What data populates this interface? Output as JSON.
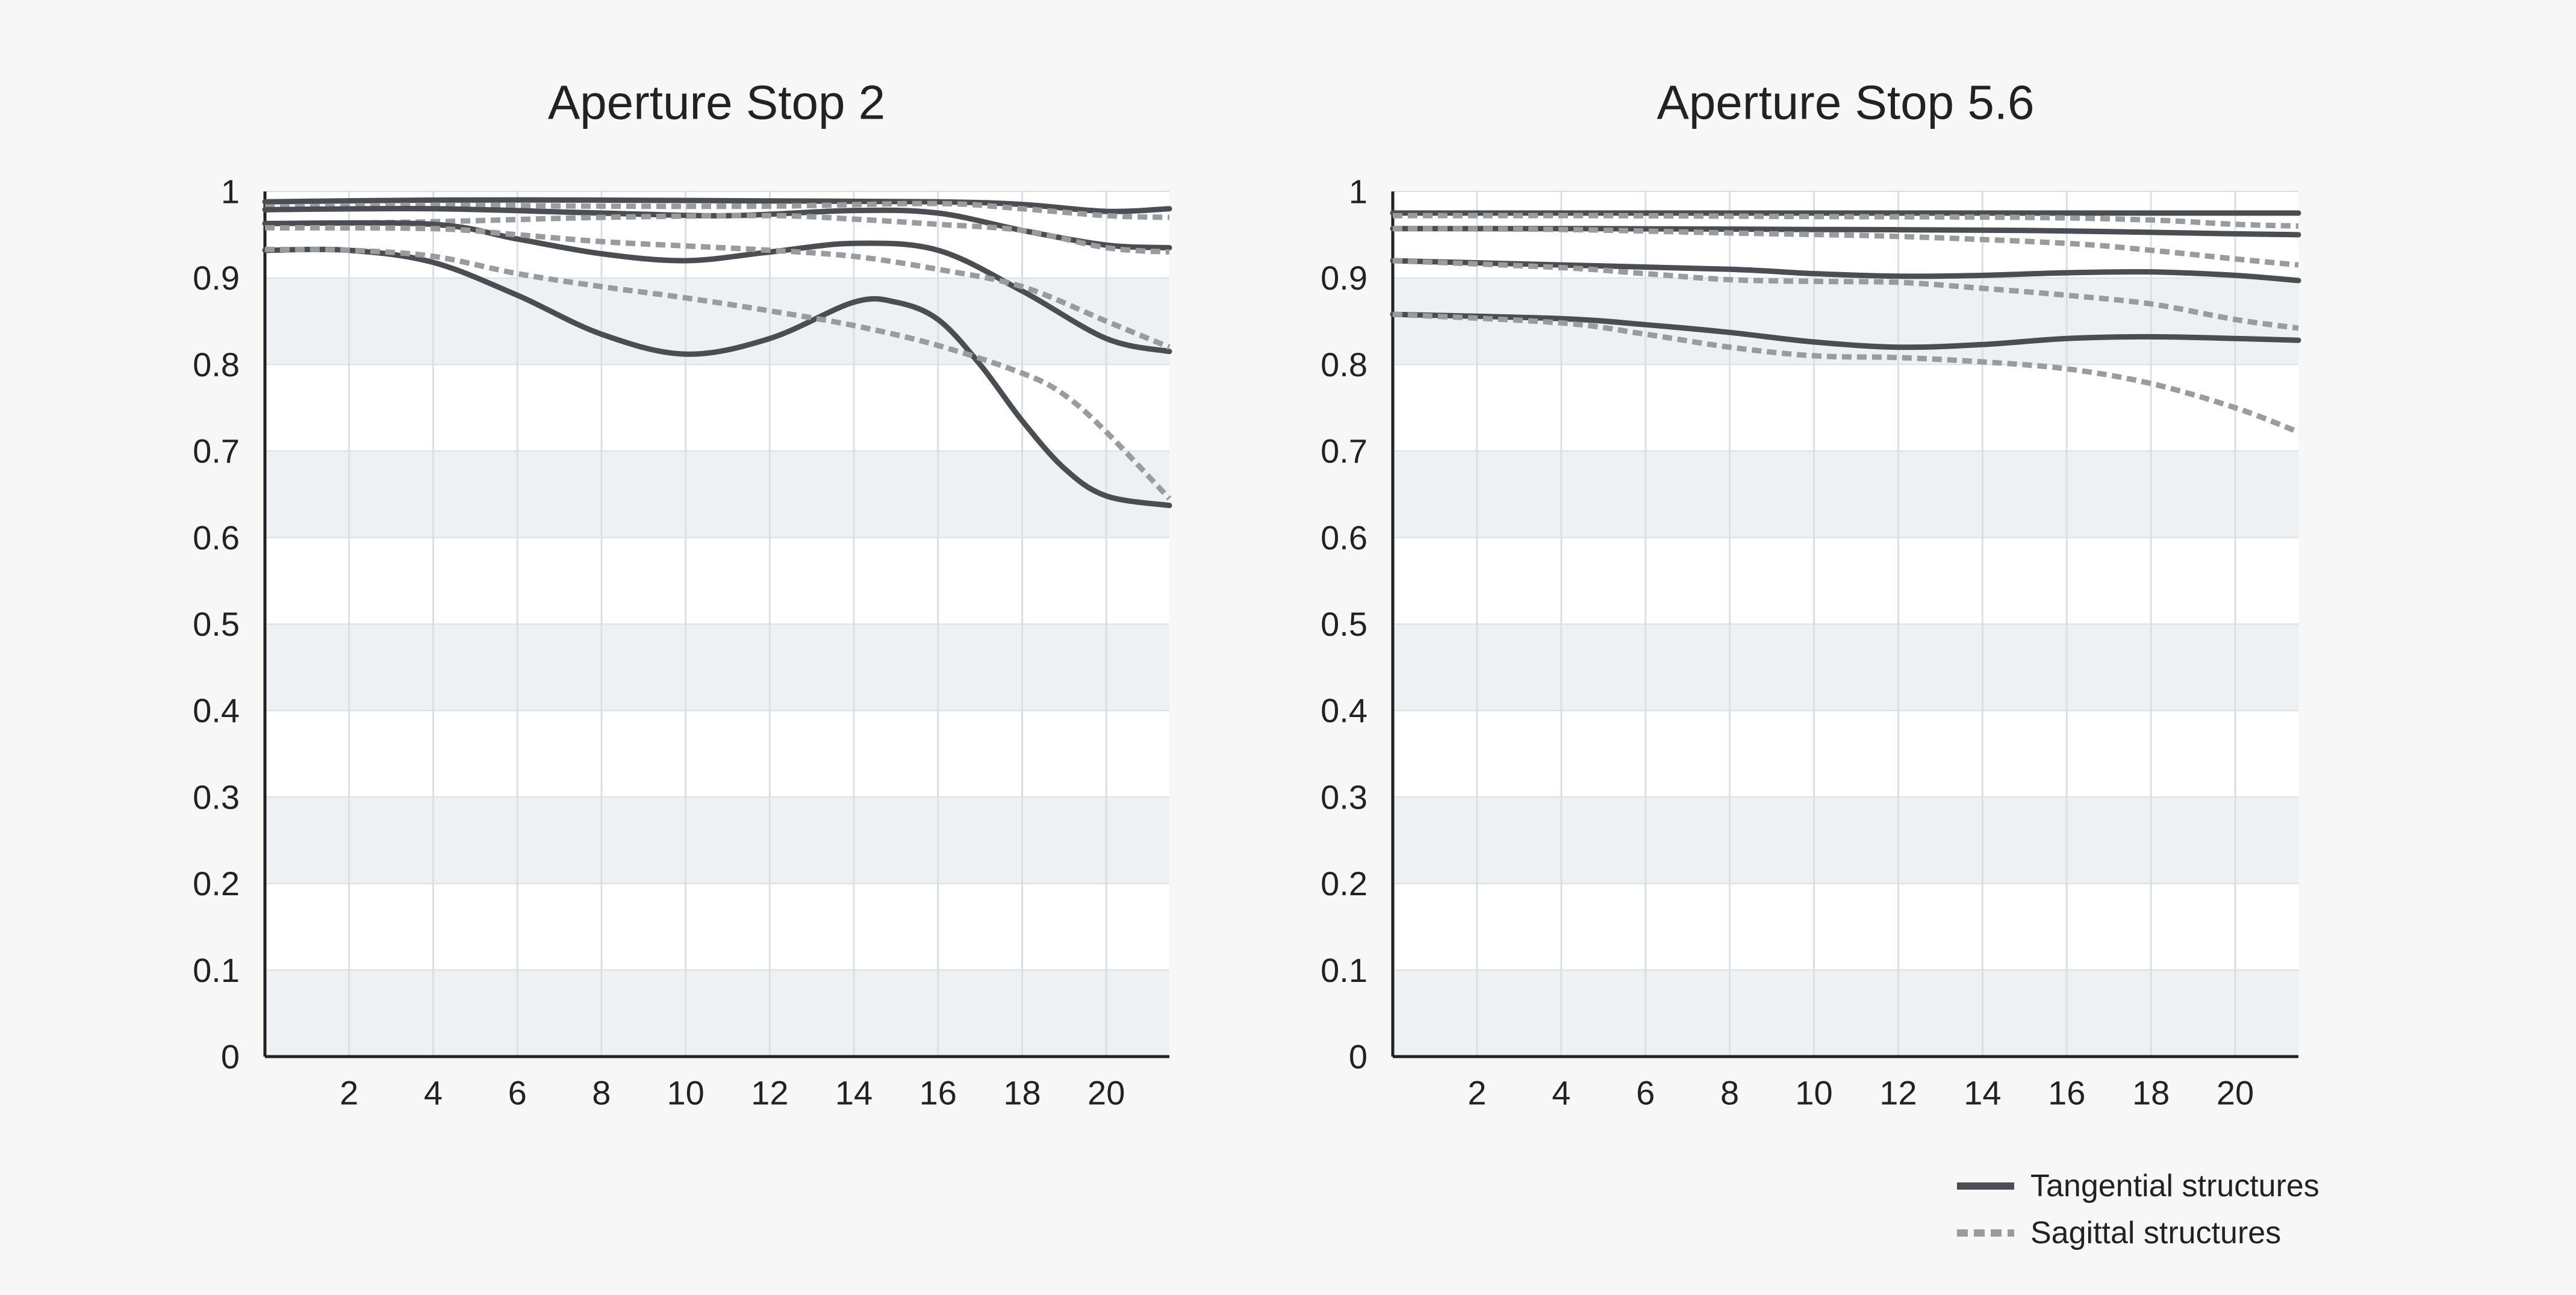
{
  "colors": {
    "background": "#f7f7f7",
    "band_shaded": "#eef1f3",
    "band_plain": "#ffffff",
    "grid": "#dcdfe2",
    "axis": "#222222",
    "tangential": "#4a4d52",
    "sagittal": "#9a9b9d"
  },
  "legend": {
    "placement": "bottom-right",
    "items": [
      {
        "label": "Tangential structures",
        "style": "solid",
        "icon": "solid-line-icon"
      },
      {
        "label": "Sagittal structures",
        "style": "dashed",
        "icon": "dashed-line-icon"
      }
    ]
  },
  "chart_data": [
    {
      "type": "line",
      "title": "Aperture Stop 2",
      "xlabel": "",
      "ylabel": "",
      "xlim": [
        0,
        21.5
      ],
      "ylim": [
        0,
        1
      ],
      "xticks": [
        2,
        4,
        6,
        8,
        10,
        12,
        14,
        16,
        18,
        20
      ],
      "yticks": [
        0,
        0.1,
        0.2,
        0.3,
        0.4,
        0.5,
        0.6,
        0.7,
        0.8,
        0.9,
        1
      ],
      "ytick_labels": [
        "0",
        "0.1",
        "0.2",
        "0.3",
        "0.4",
        "0.5",
        "0.6",
        "0.7",
        "0.8",
        "0.9",
        "1"
      ],
      "grid": true,
      "series": [
        {
          "style": "tangential",
          "x": [
            0,
            4,
            8,
            12,
            16,
            18,
            20,
            21.5
          ],
          "y": [
            0.988,
            0.99,
            0.99,
            0.989,
            0.988,
            0.985,
            0.977,
            0.98
          ]
        },
        {
          "style": "sagittal",
          "x": [
            0,
            4,
            8,
            12,
            16,
            18,
            20,
            21.5
          ],
          "y": [
            0.982,
            0.984,
            0.983,
            0.983,
            0.986,
            0.98,
            0.972,
            0.97
          ]
        },
        {
          "style": "tangential",
          "x": [
            0,
            4,
            8,
            11,
            14,
            16,
            18,
            20,
            21.5
          ],
          "y": [
            0.979,
            0.98,
            0.975,
            0.972,
            0.978,
            0.975,
            0.955,
            0.938,
            0.935
          ]
        },
        {
          "style": "sagittal",
          "x": [
            0,
            4,
            8,
            12,
            14,
            16,
            18,
            20,
            21.5
          ],
          "y": [
            0.962,
            0.965,
            0.97,
            0.972,
            0.968,
            0.962,
            0.955,
            0.935,
            0.93
          ]
        },
        {
          "style": "tangential",
          "x": [
            0,
            4,
            6,
            8,
            10,
            12,
            14,
            16,
            18,
            20,
            21.5
          ],
          "y": [
            0.963,
            0.962,
            0.945,
            0.928,
            0.92,
            0.93,
            0.94,
            0.932,
            0.885,
            0.83,
            0.815
          ]
        },
        {
          "style": "sagittal",
          "x": [
            0,
            4,
            6,
            8,
            10,
            12,
            14,
            16,
            18,
            20,
            21.5
          ],
          "y": [
            0.958,
            0.957,
            0.95,
            0.942,
            0.937,
            0.932,
            0.925,
            0.91,
            0.89,
            0.85,
            0.82
          ]
        },
        {
          "style": "tangential",
          "x": [
            0,
            2,
            4,
            6,
            8,
            10,
            12,
            14,
            15,
            16,
            17,
            18,
            19,
            20,
            21.5
          ],
          "y": [
            0.932,
            0.932,
            0.918,
            0.88,
            0.835,
            0.812,
            0.83,
            0.872,
            0.872,
            0.852,
            0.8,
            0.735,
            0.68,
            0.648,
            0.637
          ]
        },
        {
          "style": "sagittal",
          "x": [
            0,
            2,
            4,
            6,
            8,
            10,
            12,
            14,
            16,
            18,
            19,
            20,
            21.5
          ],
          "y": [
            0.933,
            0.932,
            0.925,
            0.905,
            0.89,
            0.877,
            0.862,
            0.845,
            0.822,
            0.79,
            0.765,
            0.722,
            0.645
          ]
        }
      ]
    },
    {
      "type": "line",
      "title": "Aperture Stop 5.6",
      "xlabel": "",
      "ylabel": "",
      "xlim": [
        0,
        21.5
      ],
      "ylim": [
        0,
        1
      ],
      "xticks": [
        2,
        4,
        6,
        8,
        10,
        12,
        14,
        16,
        18,
        20
      ],
      "yticks": [
        0,
        0.1,
        0.2,
        0.3,
        0.4,
        0.5,
        0.6,
        0.7,
        0.8,
        0.9,
        1
      ],
      "ytick_labels": [
        "0",
        "0.1",
        "0.2",
        "0.3",
        "0.4",
        "0.5",
        "0.6",
        "0.7",
        "0.8",
        "0.9",
        "1"
      ],
      "grid": true,
      "series": [
        {
          "style": "tangential",
          "x": [
            0,
            5,
            10,
            15,
            20,
            21.5
          ],
          "y": [
            0.975,
            0.975,
            0.975,
            0.975,
            0.975,
            0.975
          ]
        },
        {
          "style": "sagittal",
          "x": [
            0,
            5,
            10,
            15,
            18,
            20,
            21.5
          ],
          "y": [
            0.972,
            0.972,
            0.971,
            0.97,
            0.967,
            0.962,
            0.96
          ]
        },
        {
          "style": "tangential",
          "x": [
            0,
            5,
            10,
            15,
            20,
            21.5
          ],
          "y": [
            0.957,
            0.957,
            0.956,
            0.955,
            0.951,
            0.95
          ]
        },
        {
          "style": "sagittal",
          "x": [
            0,
            4,
            8,
            12,
            16,
            18,
            20,
            21.5
          ],
          "y": [
            0.957,
            0.956,
            0.952,
            0.948,
            0.94,
            0.932,
            0.922,
            0.915
          ]
        },
        {
          "style": "tangential",
          "x": [
            0,
            4,
            8,
            10,
            12,
            14,
            16,
            18,
            20,
            21.5
          ],
          "y": [
            0.92,
            0.915,
            0.91,
            0.905,
            0.902,
            0.903,
            0.906,
            0.907,
            0.903,
            0.897
          ]
        },
        {
          "style": "sagittal",
          "x": [
            0,
            4,
            6,
            8,
            10,
            12,
            14,
            16,
            18,
            20,
            21.5
          ],
          "y": [
            0.92,
            0.912,
            0.905,
            0.898,
            0.896,
            0.895,
            0.888,
            0.88,
            0.87,
            0.852,
            0.842
          ]
        },
        {
          "style": "tangential",
          "x": [
            0,
            4,
            6,
            8,
            10,
            12,
            14,
            16,
            18,
            20,
            21.5
          ],
          "y": [
            0.858,
            0.853,
            0.846,
            0.837,
            0.826,
            0.82,
            0.823,
            0.83,
            0.832,
            0.83,
            0.828
          ]
        },
        {
          "style": "sagittal",
          "x": [
            0,
            4,
            6,
            8,
            10,
            12,
            14,
            16,
            18,
            20,
            21.5
          ],
          "y": [
            0.858,
            0.848,
            0.835,
            0.82,
            0.81,
            0.808,
            0.803,
            0.795,
            0.778,
            0.75,
            0.722
          ]
        }
      ]
    }
  ]
}
